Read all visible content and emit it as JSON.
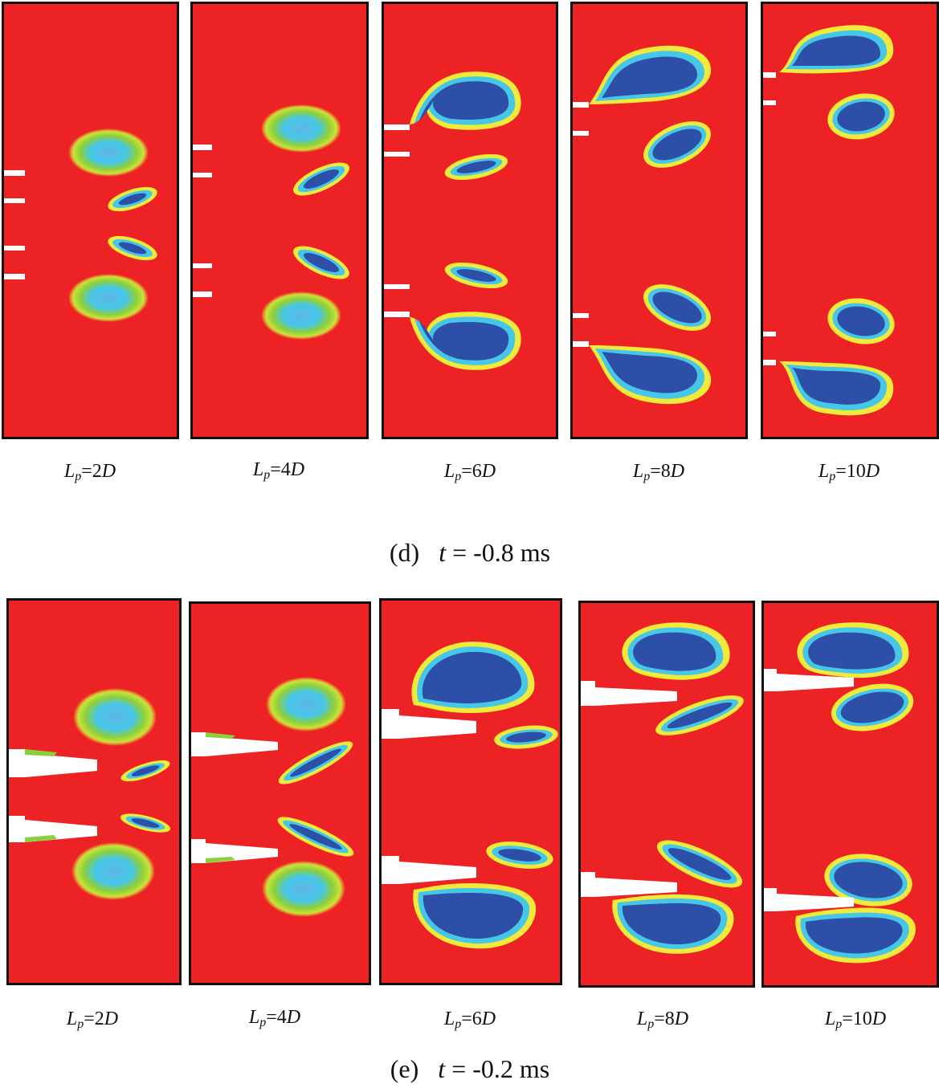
{
  "colors": {
    "field": "#ec2224",
    "edge_yellow": "#f2ea3a",
    "edge_green": "#8ccf3c",
    "ring_cyan": "#46c7e8",
    "core_blue": "#2d4fa8",
    "core_light": "#5fb6e6",
    "nozzle": "#ffffff",
    "frame": "#111111"
  },
  "rows": [
    {
      "caption": {
        "prefix": "(d)",
        "var": "t",
        "eq": "= -0.8 ms"
      },
      "panels": [
        {
          "label": {
            "L": "L",
            "p": "p",
            "val": "=2",
            "D": "D"
          }
        },
        {
          "label": {
            "L": "L",
            "p": "p",
            "val": "=4",
            "D": "D"
          }
        },
        {
          "label": {
            "L": "L",
            "p": "p",
            "val": "=6",
            "D": "D"
          }
        },
        {
          "label": {
            "L": "L",
            "p": "p",
            "val": "=8",
            "D": "D"
          }
        },
        {
          "label": {
            "L": "L",
            "p": "p",
            "val": "=10",
            "D": "D"
          }
        }
      ]
    },
    {
      "caption": {
        "prefix": "(e)",
        "var": "t",
        "eq": "= -0.2 ms"
      },
      "panels": [
        {
          "label": {
            "L": "L",
            "p": "p",
            "val": "=2",
            "D": "D"
          }
        },
        {
          "label": {
            "L": "L",
            "p": "p",
            "val": "=4",
            "D": "D"
          }
        },
        {
          "label": {
            "L": "L",
            "p": "p",
            "val": "=6",
            "D": "D"
          }
        },
        {
          "label": {
            "L": "L",
            "p": "p",
            "val": "=8",
            "D": "D"
          }
        },
        {
          "label": {
            "L": "L",
            "p": "p",
            "val": "=10",
            "D": "D"
          }
        }
      ]
    }
  ]
}
